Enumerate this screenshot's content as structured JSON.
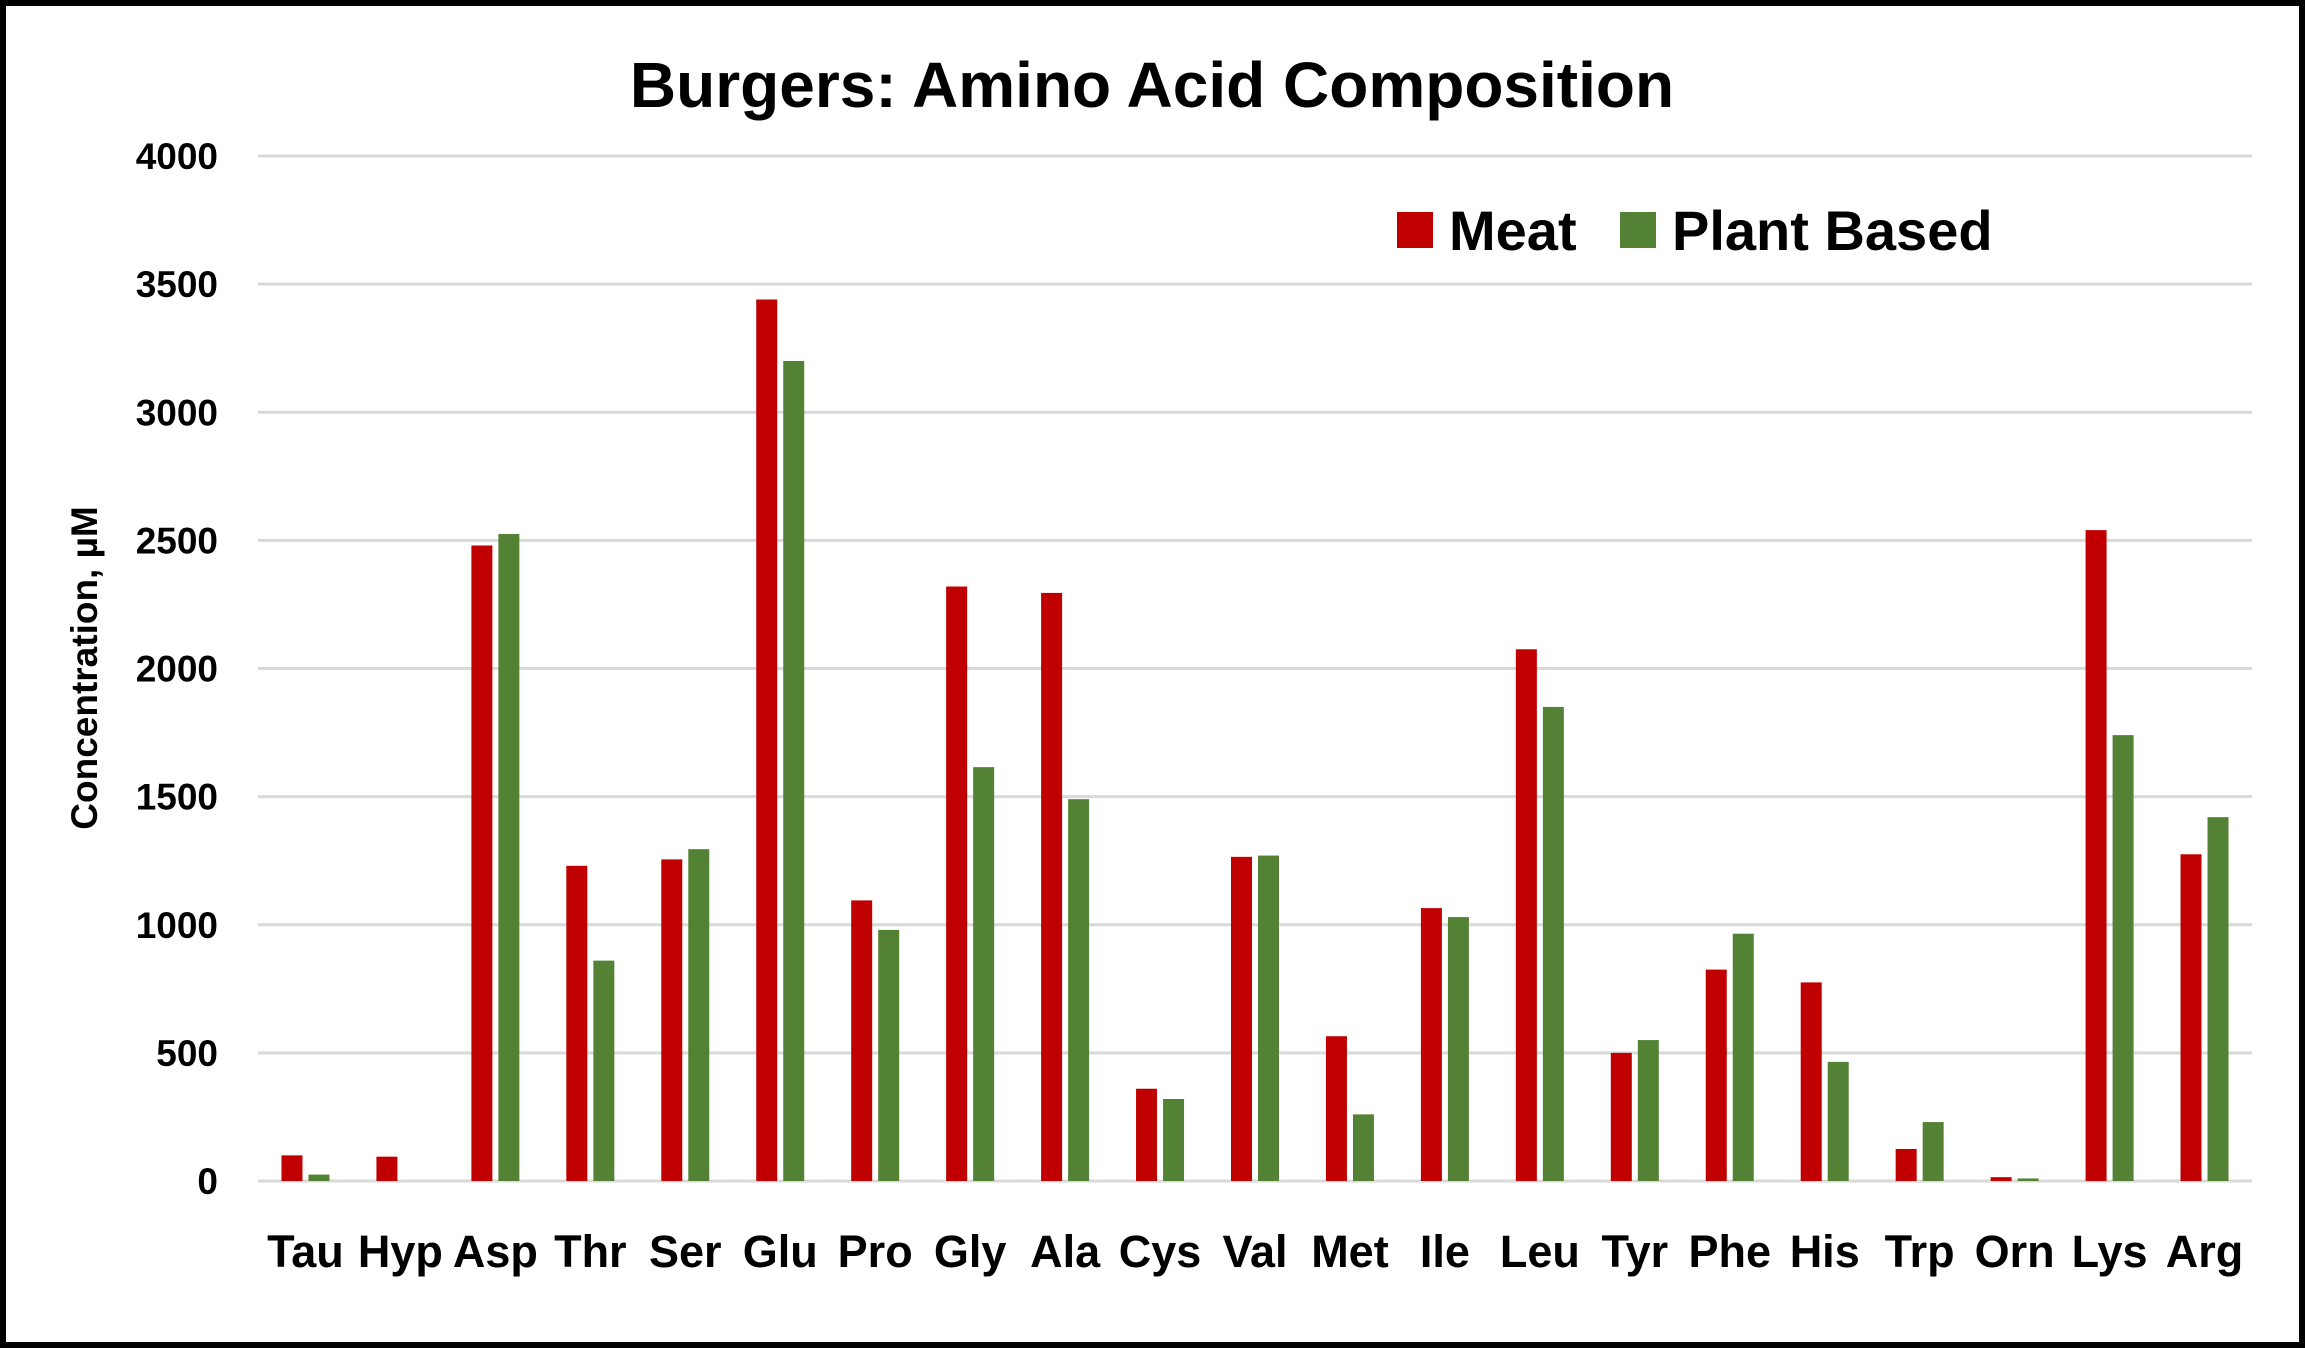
{
  "chart_data": {
    "type": "bar",
    "title": "Burgers: Amino Acid Composition",
    "xlabel": "",
    "ylabel": "Concentration, µM",
    "ylim": [
      0,
      4000
    ],
    "yticks": [
      0,
      500,
      1000,
      1500,
      2000,
      2500,
      3000,
      3500,
      4000
    ],
    "ytick_labels": [
      "0",
      "500",
      "1000",
      "1500",
      "2000",
      "2500",
      "3000",
      "3500",
      "4000"
    ],
    "grid": true,
    "legend_position": "top-right",
    "categories": [
      "Tau",
      "Hyp",
      "Asp",
      "Thr",
      "Ser",
      "Glu",
      "Pro",
      "Gly",
      "Ala",
      "Cys",
      "Val",
      "Met",
      "Ile",
      "Leu",
      "Tyr",
      "Phe",
      "His",
      "Trp",
      "Orn",
      "Lys",
      "Arg"
    ],
    "series": [
      {
        "name": "Meat",
        "color": "#c00000",
        "values": [
          100,
          95,
          2480,
          1230,
          1255,
          3440,
          1095,
          2320,
          2295,
          360,
          1265,
          565,
          1065,
          2075,
          500,
          825,
          775,
          125,
          15,
          2540,
          1275
        ]
      },
      {
        "name": "Plant Based",
        "color": "#548235",
        "values": [
          25,
          0,
          2525,
          860,
          1295,
          3200,
          980,
          1615,
          1490,
          320,
          1270,
          260,
          1030,
          1850,
          550,
          965,
          465,
          230,
          10,
          1740,
          1420
        ]
      }
    ]
  }
}
